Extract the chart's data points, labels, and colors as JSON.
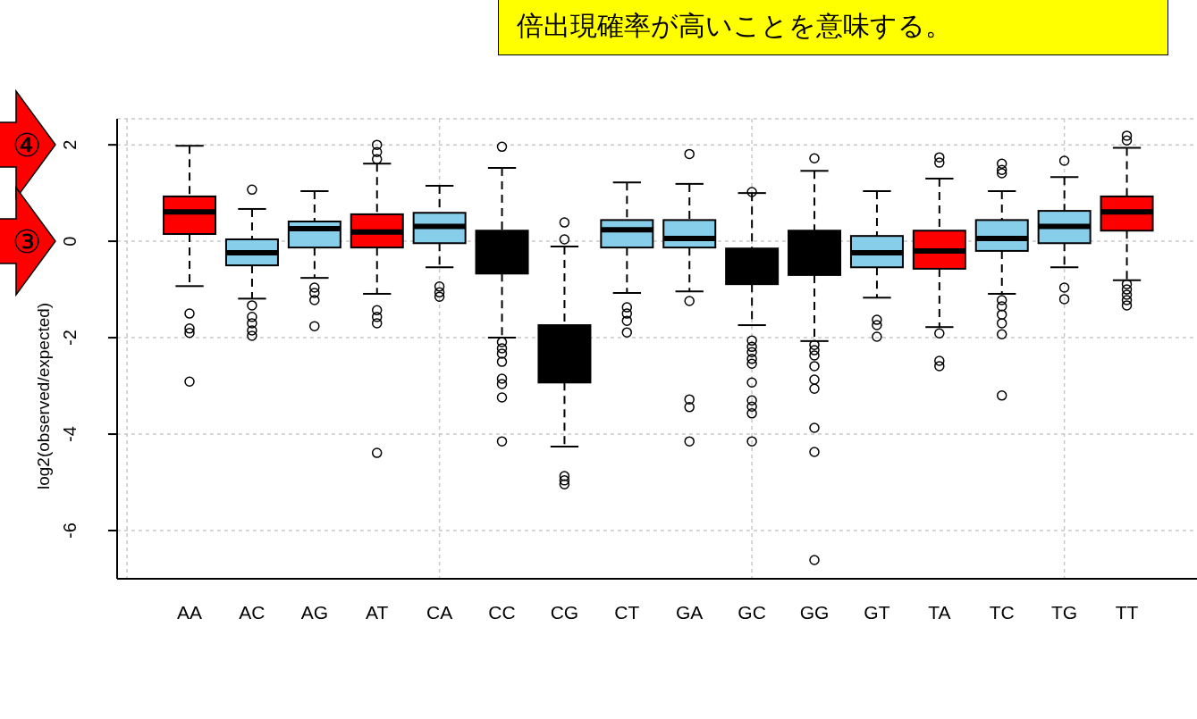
{
  "chart_data": {
    "type": "box",
    "ylabel": "log2(observed/expected)",
    "categories": [
      "AA",
      "AC",
      "AG",
      "AT",
      "CA",
      "CC",
      "CG",
      "CT",
      "GA",
      "GC",
      "GG",
      "GT",
      "TA",
      "TC",
      "TG",
      "TT"
    ],
    "colors": [
      "#ff0000",
      "#87ceeb",
      "#87ceeb",
      "#ff0000",
      "#87ceeb",
      "#000000",
      "#000000",
      "#87ceeb",
      "#87ceeb",
      "#000000",
      "#000000",
      "#87ceeb",
      "#ff0000",
      "#87ceeb",
      "#87ceeb",
      "#ff0000"
    ],
    "boxes": [
      {
        "low": -0.93,
        "q1": 0.15,
        "median": 0.61,
        "q3": 0.93,
        "high": 1.98,
        "outliers": [
          -1.5,
          -1.81,
          -1.9,
          -2.91
        ]
      },
      {
        "low": -1.19,
        "q1": -0.5,
        "median": -0.24,
        "q3": 0.04,
        "high": 0.67,
        "outliers": [
          1.07,
          -1.33,
          -1.57,
          -1.7,
          -1.85,
          -1.96
        ]
      },
      {
        "low": -0.76,
        "q1": -0.13,
        "median": 0.26,
        "q3": 0.41,
        "high": 1.04,
        "outliers": [
          -0.96,
          -1.07,
          -1.22,
          -1.76
        ]
      },
      {
        "low": -1.09,
        "q1": -0.13,
        "median": 0.19,
        "q3": 0.56,
        "high": 1.61,
        "outliers": [
          2.0,
          1.85,
          1.7,
          -1.43,
          -1.57,
          -1.7,
          -4.39
        ]
      },
      {
        "low": -0.54,
        "q1": -0.04,
        "median": 0.31,
        "q3": 0.59,
        "high": 1.15,
        "outliers": [
          -0.94,
          -1.06,
          -1.15
        ]
      },
      {
        "low": -2.0,
        "q1": -0.67,
        "median": null,
        "q3": 0.22,
        "high": 1.52,
        "outliers": [
          1.96,
          -2.09,
          -2.22,
          -2.33,
          -2.5,
          -2.85,
          -2.96,
          -3.24,
          -4.15
        ]
      },
      {
        "low": -4.26,
        "q1": -2.93,
        "median": null,
        "q3": -1.74,
        "high": -0.11,
        "outliers": [
          0.39,
          0.04,
          -4.87,
          -4.96,
          -5.04
        ]
      },
      {
        "low": -1.07,
        "q1": -0.13,
        "median": 0.24,
        "q3": 0.44,
        "high": 1.22,
        "outliers": [
          -1.37,
          -1.5,
          -1.65,
          -1.89
        ]
      },
      {
        "low": -1.04,
        "q1": -0.13,
        "median": 0.06,
        "q3": 0.44,
        "high": 1.19,
        "outliers": [
          1.81,
          -1.24,
          -3.28,
          -3.44,
          -4.15
        ]
      },
      {
        "low": -1.74,
        "q1": -0.89,
        "median": null,
        "q3": -0.15,
        "high": 1.0,
        "outliers": [
          1.02,
          -2.06,
          -2.19,
          -2.3,
          -2.44,
          -2.54,
          -2.93,
          -3.3,
          -3.43,
          -3.57,
          -4.15
        ]
      },
      {
        "low": -2.07,
        "q1": -0.7,
        "median": null,
        "q3": 0.22,
        "high": 1.46,
        "outliers": [
          1.72,
          -2.15,
          -2.26,
          -2.37,
          -2.59,
          -2.87,
          -3.06,
          -3.87,
          -4.37,
          -6.61
        ]
      },
      {
        "low": -1.17,
        "q1": -0.54,
        "median": -0.24,
        "q3": 0.11,
        "high": 1.04,
        "outliers": [
          -1.63,
          -1.74,
          -1.98
        ]
      },
      {
        "low": -1.78,
        "q1": -0.57,
        "median": -0.2,
        "q3": 0.22,
        "high": 1.3,
        "outliers": [
          1.74,
          1.63,
          -1.91,
          -2.48,
          -2.59
        ]
      },
      {
        "low": -1.09,
        "q1": -0.2,
        "median": 0.06,
        "q3": 0.44,
        "high": 1.04,
        "outliers": [
          1.61,
          1.48,
          1.41,
          -1.22,
          -1.35,
          -1.52,
          -1.7,
          -1.93,
          -3.2
        ]
      },
      {
        "low": -0.54,
        "q1": -0.04,
        "median": 0.31,
        "q3": 0.63,
        "high": 1.33,
        "outliers": [
          1.67,
          -0.96,
          -1.2
        ]
      },
      {
        "low": -0.81,
        "q1": 0.22,
        "median": 0.61,
        "q3": 0.93,
        "high": 1.94,
        "outliers": [
          2.19,
          2.09,
          -0.89,
          -1.0,
          -1.11,
          -1.22,
          -1.33
        ]
      }
    ],
    "ylim": [
      -7,
      2.54
    ],
    "yticks": [
      -6,
      -4,
      -2,
      0,
      2
    ],
    "grid": true,
    "annotations": [
      "倍出現確率が高いことを意味する。",
      "④",
      "③"
    ]
  }
}
